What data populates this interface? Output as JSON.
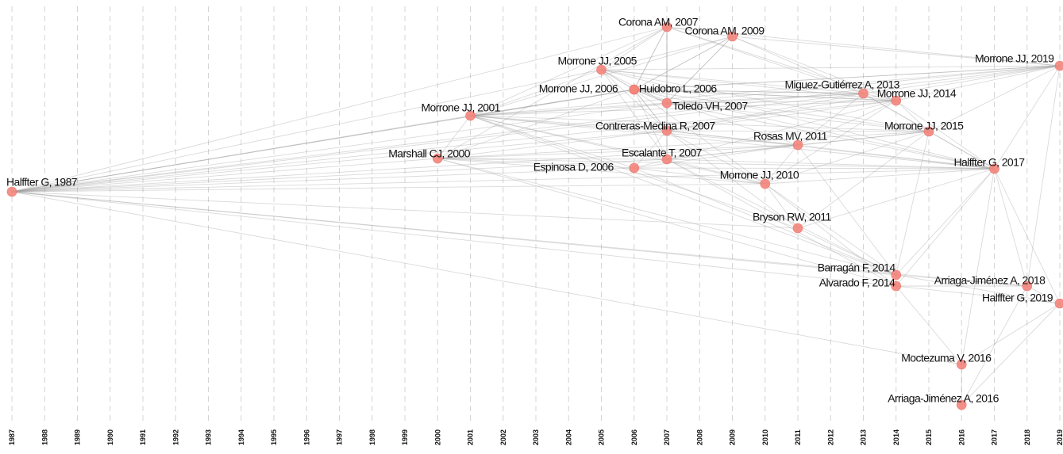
{
  "chart_data": {
    "type": "scatter",
    "title": "",
    "xlabel": "",
    "ylabel": "",
    "xlim": [
      1987,
      2019
    ],
    "colors": {
      "node": "#f3857c",
      "edge": "#9e9e9e",
      "grid": "#d4d4d4"
    },
    "years": [
      "1987",
      "1988",
      "1989",
      "1990",
      "1991",
      "1992",
      "1993",
      "1994",
      "1995",
      "1996",
      "1997",
      "1998",
      "1999",
      "2000",
      "2001",
      "2002",
      "2003",
      "2004",
      "2005",
      "2006",
      "2007",
      "2008",
      "2009",
      "2010",
      "2011",
      "2012",
      "2013",
      "2014",
      "2015",
      "2016",
      "2017",
      "2018",
      "2019"
    ],
    "nodes": [
      {
        "id": "halffter1987",
        "label": "Halffter G, 1987",
        "year": 1987
      },
      {
        "id": "marshall2000",
        "label": "Marshall CJ, 2000",
        "year": 2000
      },
      {
        "id": "morrone2001",
        "label": "Morrone JJ, 2001",
        "year": 2001
      },
      {
        "id": "morrone2005",
        "label": "Morrone JJ, 2005",
        "year": 2005
      },
      {
        "id": "morrone2006",
        "label": "Morrone JJ, 2006",
        "year": 2006
      },
      {
        "id": "huidobro2006",
        "label": "Huidobro L, 2006",
        "year": 2006
      },
      {
        "id": "espinosa2006",
        "label": "Espinosa D, 2006",
        "year": 2006
      },
      {
        "id": "corona2007",
        "label": "Corona AM, 2007",
        "year": 2007
      },
      {
        "id": "toledo2007",
        "label": "Toledo VH, 2007",
        "year": 2007
      },
      {
        "id": "contreras2007",
        "label": "Contreras-Medina R, 2007",
        "year": 2007
      },
      {
        "id": "escalante2007",
        "label": "Escalante T, 2007",
        "year": 2007
      },
      {
        "id": "corona2009",
        "label": "Corona AM, 2009",
        "year": 2009
      },
      {
        "id": "morrone2010",
        "label": "Morrone JJ, 2010",
        "year": 2010
      },
      {
        "id": "rosas2011",
        "label": "Rosas MV, 2011",
        "year": 2011
      },
      {
        "id": "bryson2011",
        "label": "Bryson RW, 2011",
        "year": 2011
      },
      {
        "id": "miguez2013",
        "label": "Miguez-Gutiérrez A, 2013",
        "year": 2013
      },
      {
        "id": "morrone2014",
        "label": "Morrone JJ, 2014",
        "year": 2014
      },
      {
        "id": "barragan2014",
        "label": "Barragán F, 2014",
        "year": 2014
      },
      {
        "id": "alvarado2014",
        "label": "Alvarado F, 2014",
        "year": 2014
      },
      {
        "id": "morrone2015",
        "label": "Morrone JJ, 2015",
        "year": 2015
      },
      {
        "id": "moctezuma2016",
        "label": "Moctezuma V, 2016",
        "year": 2016
      },
      {
        "id": "arriaga2016",
        "label": "Arriaga-Jiménez A, 2016",
        "year": 2016
      },
      {
        "id": "halffter2017",
        "label": "Halffter G, 2017",
        "year": 2017
      },
      {
        "id": "arriaga2018",
        "label": "Arriaga-Jiménez A, 2018",
        "year": 2018
      },
      {
        "id": "morrone2019",
        "label": "Morrone JJ, 2019",
        "year": 2019
      },
      {
        "id": "halffter2019",
        "label": "Halffter G, 2019",
        "year": 2019
      }
    ],
    "edges": [
      [
        "halffter1987",
        "marshall2000"
      ],
      [
        "halffter1987",
        "morrone2001"
      ],
      [
        "halffter1987",
        "morrone2005"
      ],
      [
        "halffter1987",
        "morrone2006"
      ],
      [
        "halffter1987",
        "huidobro2006"
      ],
      [
        "halffter1987",
        "espinosa2006"
      ],
      [
        "halffter1987",
        "corona2007"
      ],
      [
        "halffter1987",
        "toledo2007"
      ],
      [
        "halffter1987",
        "contreras2007"
      ],
      [
        "halffter1987",
        "escalante2007"
      ],
      [
        "halffter1987",
        "morrone2010"
      ],
      [
        "halffter1987",
        "rosas2011"
      ],
      [
        "halffter1987",
        "bryson2011"
      ],
      [
        "halffter1987",
        "miguez2013"
      ],
      [
        "halffter1987",
        "morrone2014"
      ],
      [
        "halffter1987",
        "barragan2014"
      ],
      [
        "halffter1987",
        "alvarado2014"
      ],
      [
        "halffter1987",
        "halffter2017"
      ],
      [
        "halffter1987",
        "morrone2019"
      ],
      [
        "halffter1987",
        "moctezuma2016"
      ],
      [
        "halffter1987",
        "arriaga2018"
      ],
      [
        "marshall2000",
        "morrone2001"
      ],
      [
        "marshall2000",
        "huidobro2006"
      ],
      [
        "marshall2000",
        "contreras2007"
      ],
      [
        "marshall2000",
        "escalante2007"
      ],
      [
        "marshall2000",
        "espinosa2006"
      ],
      [
        "marshall2000",
        "morrone2010"
      ],
      [
        "marshall2000",
        "rosas2011"
      ],
      [
        "marshall2000",
        "barragan2014"
      ],
      [
        "marshall2000",
        "alvarado2014"
      ],
      [
        "marshall2000",
        "halffter2017"
      ],
      [
        "marshall2000",
        "morrone2015"
      ],
      [
        "marshall2000",
        "corona2007"
      ],
      [
        "morrone2001",
        "morrone2005"
      ],
      [
        "morrone2001",
        "morrone2006"
      ],
      [
        "morrone2001",
        "huidobro2006"
      ],
      [
        "morrone2001",
        "corona2007"
      ],
      [
        "morrone2001",
        "toledo2007"
      ],
      [
        "morrone2001",
        "contreras2007"
      ],
      [
        "morrone2001",
        "escalante2007"
      ],
      [
        "morrone2001",
        "espinosa2006"
      ],
      [
        "morrone2001",
        "corona2009"
      ],
      [
        "morrone2001",
        "morrone2010"
      ],
      [
        "morrone2001",
        "rosas2011"
      ],
      [
        "morrone2001",
        "miguez2013"
      ],
      [
        "morrone2001",
        "morrone2014"
      ],
      [
        "morrone2001",
        "morrone2015"
      ],
      [
        "morrone2001",
        "halffter2017"
      ],
      [
        "morrone2001",
        "morrone2019"
      ],
      [
        "morrone2001",
        "bryson2011"
      ],
      [
        "morrone2001",
        "barragan2014"
      ],
      [
        "morrone2005",
        "morrone2006"
      ],
      [
        "morrone2005",
        "huidobro2006"
      ],
      [
        "morrone2005",
        "corona2007"
      ],
      [
        "morrone2005",
        "toledo2007"
      ],
      [
        "morrone2005",
        "contreras2007"
      ],
      [
        "morrone2005",
        "escalante2007"
      ],
      [
        "morrone2005",
        "corona2009"
      ],
      [
        "morrone2005",
        "miguez2013"
      ],
      [
        "morrone2005",
        "morrone2014"
      ],
      [
        "morrone2005",
        "morrone2015"
      ],
      [
        "morrone2005",
        "morrone2019"
      ],
      [
        "morrone2005",
        "halffter2017"
      ],
      [
        "morrone2006",
        "huidobro2006"
      ],
      [
        "morrone2006",
        "corona2007"
      ],
      [
        "morrone2006",
        "toledo2007"
      ],
      [
        "morrone2006",
        "contreras2007"
      ],
      [
        "morrone2006",
        "corona2009"
      ],
      [
        "morrone2006",
        "miguez2013"
      ],
      [
        "morrone2006",
        "morrone2014"
      ],
      [
        "morrone2006",
        "morrone2019"
      ],
      [
        "huidobro2006",
        "corona2007"
      ],
      [
        "huidobro2006",
        "toledo2007"
      ],
      [
        "huidobro2006",
        "contreras2007"
      ],
      [
        "huidobro2006",
        "escalante2007"
      ],
      [
        "huidobro2006",
        "corona2009"
      ],
      [
        "huidobro2006",
        "morrone2010"
      ],
      [
        "huidobro2006",
        "miguez2013"
      ],
      [
        "huidobro2006",
        "morrone2014"
      ],
      [
        "huidobro2006",
        "morrone2015"
      ],
      [
        "huidobro2006",
        "halffter2017"
      ],
      [
        "huidobro2006",
        "morrone2019"
      ],
      [
        "huidobro2006",
        "rosas2011"
      ],
      [
        "espinosa2006",
        "escalante2007"
      ],
      [
        "espinosa2006",
        "contreras2007"
      ],
      [
        "espinosa2006",
        "morrone2010"
      ],
      [
        "espinosa2006",
        "rosas2011"
      ],
      [
        "espinosa2006",
        "halffter2017"
      ],
      [
        "espinosa2006",
        "barragan2014"
      ],
      [
        "corona2007",
        "corona2009"
      ],
      [
        "corona2007",
        "toledo2007"
      ],
      [
        "corona2007",
        "contreras2007"
      ],
      [
        "corona2007",
        "miguez2013"
      ],
      [
        "corona2007",
        "morrone2014"
      ],
      [
        "corona2007",
        "morrone2019"
      ],
      [
        "corona2007",
        "escalante2007"
      ],
      [
        "toledo2007",
        "contreras2007"
      ],
      [
        "toledo2007",
        "corona2009"
      ],
      [
        "toledo2007",
        "miguez2013"
      ],
      [
        "toledo2007",
        "morrone2014"
      ],
      [
        "toledo2007",
        "morrone2015"
      ],
      [
        "toledo2007",
        "halffter2017"
      ],
      [
        "toledo2007",
        "morrone2019"
      ],
      [
        "contreras2007",
        "escalante2007"
      ],
      [
        "contreras2007",
        "morrone2010"
      ],
      [
        "contreras2007",
        "rosas2011"
      ],
      [
        "contreras2007",
        "miguez2013"
      ],
      [
        "contreras2007",
        "morrone2014"
      ],
      [
        "contreras2007",
        "morrone2015"
      ],
      [
        "contreras2007",
        "halffter2017"
      ],
      [
        "contreras2007",
        "morrone2019"
      ],
      [
        "contreras2007",
        "bryson2011"
      ],
      [
        "escalante2007",
        "morrone2010"
      ],
      [
        "escalante2007",
        "rosas2011"
      ],
      [
        "escalante2007",
        "morrone2015"
      ],
      [
        "escalante2007",
        "halffter2017"
      ],
      [
        "escalante2007",
        "barragan2014"
      ],
      [
        "escalante2007",
        "alvarado2014"
      ],
      [
        "escalante2007",
        "morrone2014"
      ],
      [
        "corona2009",
        "miguez2013"
      ],
      [
        "corona2009",
        "morrone2014"
      ],
      [
        "corona2009",
        "morrone2019"
      ],
      [
        "corona2009",
        "toledo2007"
      ],
      [
        "morrone2010",
        "rosas2011"
      ],
      [
        "morrone2010",
        "morrone2015"
      ],
      [
        "morrone2010",
        "halffter2017"
      ],
      [
        "morrone2010",
        "barragan2014"
      ],
      [
        "morrone2010",
        "alvarado2014"
      ],
      [
        "morrone2010",
        "bryson2011"
      ],
      [
        "morrone2010",
        "morrone2014"
      ],
      [
        "rosas2011",
        "morrone2015"
      ],
      [
        "rosas2011",
        "halffter2017"
      ],
      [
        "rosas2011",
        "miguez2013"
      ],
      [
        "rosas2011",
        "morrone2014"
      ],
      [
        "rosas2011",
        "barragan2014"
      ],
      [
        "bryson2011",
        "halffter2017"
      ],
      [
        "bryson2011",
        "barragan2014"
      ],
      [
        "bryson2011",
        "morrone2015"
      ],
      [
        "miguez2013",
        "morrone2014"
      ],
      [
        "miguez2013",
        "morrone2015"
      ],
      [
        "miguez2013",
        "halffter2017"
      ],
      [
        "miguez2013",
        "morrone2019"
      ],
      [
        "morrone2014",
        "morrone2015"
      ],
      [
        "morrone2014",
        "halffter2017"
      ],
      [
        "morrone2014",
        "morrone2019"
      ],
      [
        "morrone2015",
        "halffter2017"
      ],
      [
        "morrone2015",
        "morrone2019"
      ],
      [
        "morrone2015",
        "barragan2014"
      ],
      [
        "barragan2014",
        "alvarado2014"
      ],
      [
        "barragan2014",
        "halffter2017"
      ],
      [
        "barragan2014",
        "arriaga2018"
      ],
      [
        "barragan2014",
        "halffter2019"
      ],
      [
        "alvarado2014",
        "halffter2017"
      ],
      [
        "alvarado2014",
        "halffter2019"
      ],
      [
        "alvarado2014",
        "arriaga2018"
      ],
      [
        "halffter2017",
        "morrone2019"
      ],
      [
        "halffter2017",
        "arriaga2018"
      ],
      [
        "halffter2017",
        "halffter2019"
      ],
      [
        "halffter2017",
        "moctezuma2016"
      ],
      [
        "moctezuma2016",
        "arriaga2016"
      ],
      [
        "moctezuma2016",
        "halffter2019"
      ],
      [
        "moctezuma2016",
        "alvarado2014"
      ],
      [
        "arriaga2016",
        "halffter2019"
      ],
      [
        "arriaga2016",
        "arriaga2018"
      ],
      [
        "arriaga2018",
        "halffter2019"
      ],
      [
        "arriaga2018",
        "morrone2019"
      ]
    ]
  }
}
